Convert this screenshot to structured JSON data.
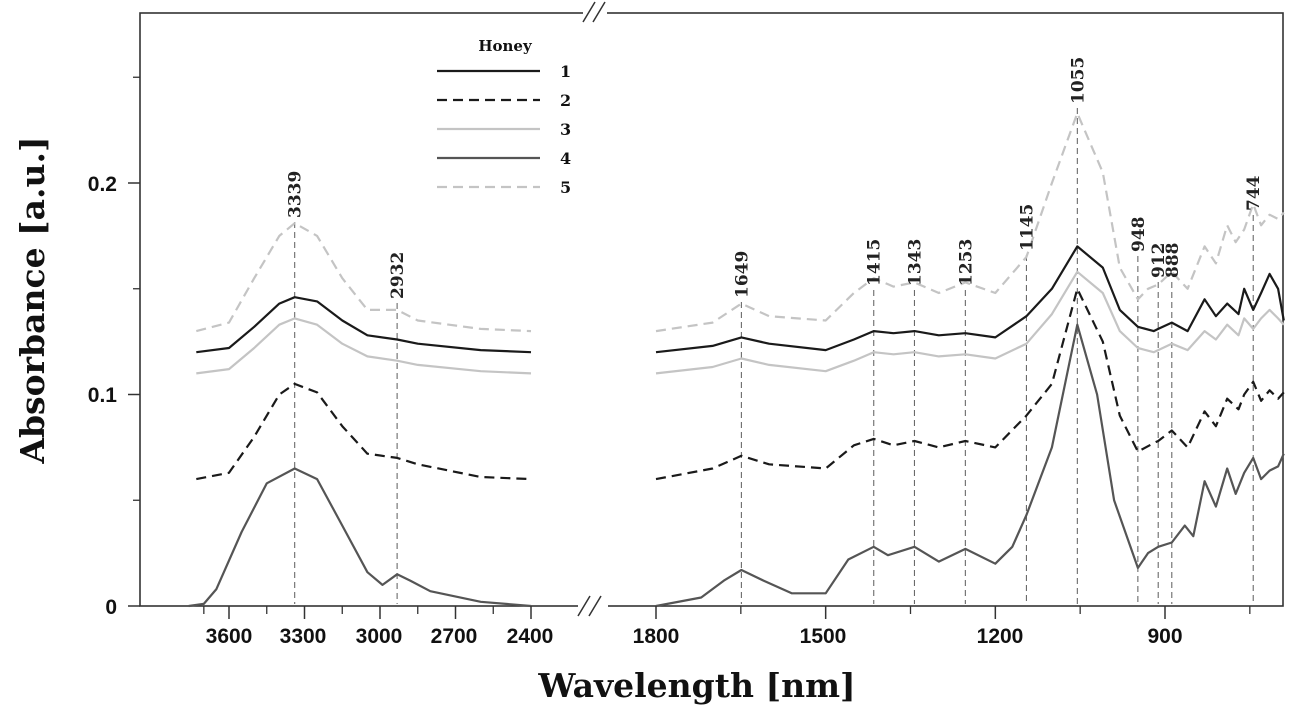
{
  "chart_data": {
    "type": "line",
    "title": "",
    "xlabel": "Wavelength [nm]",
    "ylabel": "Absorbance [a.u.]",
    "ylim": [
      0,
      0.28
    ],
    "y_ticks": [
      "0",
      "0.1",
      "0.2"
    ],
    "x_ticks_left": [
      "3600",
      "3300",
      "3000",
      "2700",
      "2400"
    ],
    "x_ticks_right": [
      "1800",
      "1500",
      "1200",
      "900"
    ],
    "x_axis_break": "between 2400 and 1800",
    "x_direction": "descending",
    "grid": false,
    "legend": {
      "title": "Honey",
      "placement": "top-left"
    },
    "peak_markers": [
      "3339",
      "2932",
      "1649",
      "1415",
      "1343",
      "1253",
      "1145",
      "1055",
      "948",
      "912",
      "888",
      "744"
    ],
    "peak_positions": [
      3339,
      2932,
      1649,
      1415,
      1343,
      1253,
      1145,
      1055,
      948,
      912,
      888,
      744
    ],
    "series": [
      {
        "name": "1",
        "style": "solid",
        "color": "#1a1a1a",
        "points": [
          [
            3730,
            0.12
          ],
          [
            3600,
            0.122
          ],
          [
            3500,
            0.132
          ],
          [
            3400,
            0.143
          ],
          [
            3339,
            0.146
          ],
          [
            3250,
            0.144
          ],
          [
            3150,
            0.135
          ],
          [
            3050,
            0.128
          ],
          [
            2932,
            0.126
          ],
          [
            2850,
            0.124
          ],
          [
            2600,
            0.121
          ],
          [
            2400,
            0.12
          ],
          [
            1800,
            0.12
          ],
          [
            1700,
            0.123
          ],
          [
            1649,
            0.127
          ],
          [
            1600,
            0.124
          ],
          [
            1500,
            0.121
          ],
          [
            1450,
            0.126
          ],
          [
            1415,
            0.13
          ],
          [
            1380,
            0.129
          ],
          [
            1343,
            0.13
          ],
          [
            1300,
            0.128
          ],
          [
            1253,
            0.129
          ],
          [
            1200,
            0.127
          ],
          [
            1145,
            0.137
          ],
          [
            1100,
            0.15
          ],
          [
            1055,
            0.17
          ],
          [
            1010,
            0.16
          ],
          [
            980,
            0.14
          ],
          [
            948,
            0.132
          ],
          [
            920,
            0.13
          ],
          [
            912,
            0.131
          ],
          [
            888,
            0.134
          ],
          [
            860,
            0.13
          ],
          [
            830,
            0.145
          ],
          [
            810,
            0.137
          ],
          [
            790,
            0.143
          ],
          [
            770,
            0.138
          ],
          [
            760,
            0.15
          ],
          [
            744,
            0.14
          ],
          [
            730,
            0.148
          ],
          [
            715,
            0.157
          ],
          [
            700,
            0.15
          ],
          [
            690,
            0.135
          ]
        ]
      },
      {
        "name": "2",
        "style": "dashed",
        "color": "#1a1a1a",
        "points": [
          [
            3730,
            0.06
          ],
          [
            3600,
            0.063
          ],
          [
            3500,
            0.08
          ],
          [
            3400,
            0.1
          ],
          [
            3339,
            0.105
          ],
          [
            3250,
            0.101
          ],
          [
            3150,
            0.085
          ],
          [
            3050,
            0.072
          ],
          [
            2932,
            0.07
          ],
          [
            2850,
            0.067
          ],
          [
            2600,
            0.061
          ],
          [
            2400,
            0.06
          ],
          [
            1800,
            0.06
          ],
          [
            1700,
            0.065
          ],
          [
            1649,
            0.071
          ],
          [
            1600,
            0.067
          ],
          [
            1500,
            0.065
          ],
          [
            1450,
            0.076
          ],
          [
            1415,
            0.079
          ],
          [
            1380,
            0.076
          ],
          [
            1343,
            0.078
          ],
          [
            1300,
            0.075
          ],
          [
            1253,
            0.078
          ],
          [
            1200,
            0.075
          ],
          [
            1145,
            0.09
          ],
          [
            1100,
            0.105
          ],
          [
            1055,
            0.15
          ],
          [
            1010,
            0.125
          ],
          [
            980,
            0.09
          ],
          [
            948,
            0.073
          ],
          [
            920,
            0.077
          ],
          [
            912,
            0.078
          ],
          [
            888,
            0.083
          ],
          [
            860,
            0.075
          ],
          [
            830,
            0.092
          ],
          [
            810,
            0.085
          ],
          [
            790,
            0.098
          ],
          [
            770,
            0.093
          ],
          [
            760,
            0.1
          ],
          [
            744,
            0.106
          ],
          [
            730,
            0.097
          ],
          [
            715,
            0.102
          ],
          [
            700,
            0.098
          ],
          [
            690,
            0.101
          ]
        ]
      },
      {
        "name": "3",
        "style": "solid",
        "color": "#c4c4c4",
        "points": [
          [
            3730,
            0.11
          ],
          [
            3600,
            0.112
          ],
          [
            3500,
            0.122
          ],
          [
            3400,
            0.133
          ],
          [
            3339,
            0.136
          ],
          [
            3250,
            0.133
          ],
          [
            3150,
            0.124
          ],
          [
            3050,
            0.118
          ],
          [
            2932,
            0.116
          ],
          [
            2850,
            0.114
          ],
          [
            2600,
            0.111
          ],
          [
            2400,
            0.11
          ],
          [
            1800,
            0.11
          ],
          [
            1700,
            0.113
          ],
          [
            1649,
            0.117
          ],
          [
            1600,
            0.114
          ],
          [
            1500,
            0.111
          ],
          [
            1450,
            0.116
          ],
          [
            1415,
            0.12
          ],
          [
            1380,
            0.119
          ],
          [
            1343,
            0.12
          ],
          [
            1300,
            0.118
          ],
          [
            1253,
            0.119
          ],
          [
            1200,
            0.117
          ],
          [
            1145,
            0.124
          ],
          [
            1100,
            0.138
          ],
          [
            1055,
            0.158
          ],
          [
            1010,
            0.148
          ],
          [
            980,
            0.13
          ],
          [
            948,
            0.122
          ],
          [
            920,
            0.12
          ],
          [
            912,
            0.121
          ],
          [
            888,
            0.124
          ],
          [
            860,
            0.121
          ],
          [
            830,
            0.13
          ],
          [
            810,
            0.126
          ],
          [
            790,
            0.133
          ],
          [
            770,
            0.128
          ],
          [
            760,
            0.136
          ],
          [
            744,
            0.131
          ],
          [
            730,
            0.136
          ],
          [
            715,
            0.14
          ],
          [
            700,
            0.136
          ],
          [
            690,
            0.133
          ]
        ]
      },
      {
        "name": "4",
        "style": "solid",
        "color": "#555555",
        "points": [
          [
            3760,
            0.0
          ],
          [
            3700,
            0.001
          ],
          [
            3650,
            0.008
          ],
          [
            3550,
            0.035
          ],
          [
            3450,
            0.058
          ],
          [
            3339,
            0.065
          ],
          [
            3250,
            0.06
          ],
          [
            3150,
            0.038
          ],
          [
            3050,
            0.016
          ],
          [
            2990,
            0.01
          ],
          [
            2932,
            0.015
          ],
          [
            2880,
            0.012
          ],
          [
            2800,
            0.007
          ],
          [
            2600,
            0.002
          ],
          [
            2400,
            0.0
          ],
          [
            1800,
            0.0
          ],
          [
            1720,
            0.004
          ],
          [
            1680,
            0.012
          ],
          [
            1649,
            0.017
          ],
          [
            1610,
            0.012
          ],
          [
            1560,
            0.006
          ],
          [
            1500,
            0.006
          ],
          [
            1460,
            0.022
          ],
          [
            1415,
            0.028
          ],
          [
            1390,
            0.024
          ],
          [
            1343,
            0.028
          ],
          [
            1300,
            0.021
          ],
          [
            1253,
            0.027
          ],
          [
            1200,
            0.02
          ],
          [
            1170,
            0.028
          ],
          [
            1145,
            0.043
          ],
          [
            1100,
            0.075
          ],
          [
            1055,
            0.133
          ],
          [
            1020,
            0.1
          ],
          [
            990,
            0.05
          ],
          [
            948,
            0.018
          ],
          [
            930,
            0.025
          ],
          [
            912,
            0.028
          ],
          [
            888,
            0.03
          ],
          [
            865,
            0.038
          ],
          [
            850,
            0.033
          ],
          [
            830,
            0.059
          ],
          [
            810,
            0.047
          ],
          [
            790,
            0.065
          ],
          [
            775,
            0.053
          ],
          [
            760,
            0.063
          ],
          [
            744,
            0.07
          ],
          [
            730,
            0.06
          ],
          [
            715,
            0.064
          ],
          [
            700,
            0.066
          ],
          [
            690,
            0.072
          ]
        ]
      },
      {
        "name": "5",
        "style": "dashed",
        "color": "#c4c4c4",
        "points": [
          [
            3730,
            0.13
          ],
          [
            3600,
            0.134
          ],
          [
            3500,
            0.155
          ],
          [
            3400,
            0.175
          ],
          [
            3339,
            0.181
          ],
          [
            3250,
            0.175
          ],
          [
            3150,
            0.155
          ],
          [
            3050,
            0.14
          ],
          [
            2932,
            0.14
          ],
          [
            2850,
            0.135
          ],
          [
            2600,
            0.131
          ],
          [
            2400,
            0.13
          ],
          [
            1800,
            0.13
          ],
          [
            1700,
            0.134
          ],
          [
            1649,
            0.143
          ],
          [
            1600,
            0.137
          ],
          [
            1500,
            0.135
          ],
          [
            1450,
            0.148
          ],
          [
            1415,
            0.155
          ],
          [
            1380,
            0.151
          ],
          [
            1343,
            0.153
          ],
          [
            1300,
            0.148
          ],
          [
            1253,
            0.153
          ],
          [
            1200,
            0.148
          ],
          [
            1145,
            0.165
          ],
          [
            1100,
            0.2
          ],
          [
            1055,
            0.233
          ],
          [
            1010,
            0.205
          ],
          [
            980,
            0.16
          ],
          [
            948,
            0.145
          ],
          [
            930,
            0.15
          ],
          [
            912,
            0.152
          ],
          [
            888,
            0.158
          ],
          [
            860,
            0.15
          ],
          [
            830,
            0.17
          ],
          [
            810,
            0.162
          ],
          [
            790,
            0.18
          ],
          [
            775,
            0.172
          ],
          [
            760,
            0.178
          ],
          [
            744,
            0.19
          ],
          [
            730,
            0.18
          ],
          [
            715,
            0.185
          ],
          [
            700,
            0.183
          ],
          [
            690,
            0.186
          ]
        ]
      }
    ]
  }
}
